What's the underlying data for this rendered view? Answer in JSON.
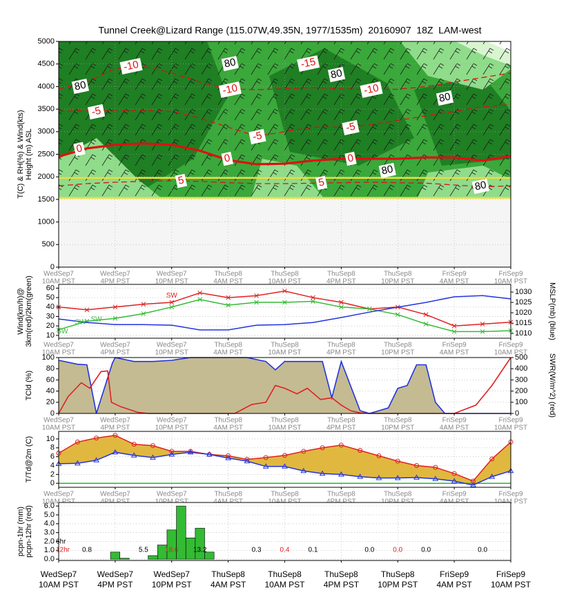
{
  "time_axis": {
    "xlim": [
      0,
      48
    ],
    "xticks": [
      0,
      6,
      12,
      18,
      24,
      30,
      36,
      42,
      48
    ],
    "days": [
      "WedSep7",
      "WedSep7",
      "WedSep7",
      "ThuSep8",
      "ThuSep8",
      "ThuSep8",
      "ThuSep8",
      "FriSep9",
      "FriSep9"
    ],
    "times": [
      "10AM PST",
      "4PM PST",
      "10PM PST",
      "4AM PST",
      "10AM PST",
      "4PM PST",
      "10PM PST",
      "4AM PST",
      "10AM PST"
    ]
  },
  "chart_data": [
    {
      "type": "contour",
      "title": "Tunnel Creek@Lizard Range (115.07W,49.35N, 1977/1535m)  20160907  18Z  LAM-west",
      "ylabel": [
        "T(C) & RH(%) & Wind(kts)",
        "Height (m) ASL"
      ],
      "ylim": [
        0,
        5000
      ],
      "yticks": [
        0,
        500,
        1000,
        1500,
        2000,
        2500,
        3000,
        3500,
        4000,
        4500,
        5000
      ],
      "grid": true,
      "elevations": [
        1535,
        1977
      ],
      "elevation_color": "#e8e040",
      "x": [
        0,
        3,
        6,
        9,
        12,
        15,
        18,
        21,
        24,
        27,
        30,
        33,
        36,
        39,
        42,
        45,
        48
      ],
      "contours": [
        {
          "level": 0,
          "color": "#dd1111",
          "dashed": false,
          "values": [
            2450,
            2630,
            2710,
            2740,
            2710,
            2580,
            2370,
            2280,
            2290,
            2360,
            2400,
            2400,
            2400,
            2430,
            2430,
            2360,
            2460
          ]
        },
        {
          "level": -5,
          "color": "#dd1111",
          "dashed": true,
          "values": [
            3450,
            3470,
            3480,
            3470,
            3450,
            3300,
            3100,
            2900,
            3000,
            3100,
            3100,
            3150,
            3250,
            3350,
            3450,
            3550,
            3600
          ]
        },
        {
          "level": -10,
          "color": "#dd1111",
          "dashed": true,
          "values": [
            3950,
            4100,
            4400,
            4450,
            4300,
            4100,
            3950,
            3930,
            3950,
            3980,
            3950,
            3930,
            3940,
            4000,
            4100,
            4200,
            4300
          ]
        },
        {
          "level": 5,
          "color": "#dd1111",
          "dashed": true,
          "values": [
            1800,
            1850,
            1880,
            1900,
            1910,
            1900,
            1870,
            1850,
            1850,
            1860,
            1870,
            1880,
            1870,
            1860,
            1820,
            1780,
            1800
          ]
        }
      ],
      "annotations": [
        {
          "text": "-10",
          "x": 7.7,
          "y": 4450,
          "color": "#dd1111"
        },
        {
          "text": "-10",
          "x": 18.2,
          "y": 3930,
          "color": "#dd1111"
        },
        {
          "text": "-10",
          "x": 33.2,
          "y": 3930,
          "color": "#dd1111"
        },
        {
          "text": "-15",
          "x": 26.5,
          "y": 4510,
          "color": "#dd1111"
        },
        {
          "text": "-5",
          "x": 4.0,
          "y": 3440,
          "color": "#dd1111"
        },
        {
          "text": "-5",
          "x": 21.1,
          "y": 2890,
          "color": "#dd1111"
        },
        {
          "text": "-5",
          "x": 31.0,
          "y": 3090,
          "color": "#dd1111"
        },
        {
          "text": "0",
          "x": 2.2,
          "y": 2615,
          "color": "#dd1111"
        },
        {
          "text": "0",
          "x": 17.9,
          "y": 2400,
          "color": "#dd1111"
        },
        {
          "text": "0",
          "x": 31.0,
          "y": 2400,
          "color": "#dd1111"
        },
        {
          "text": "5",
          "x": 13.0,
          "y": 1910,
          "color": "#dd1111"
        },
        {
          "text": "5",
          "x": 27.9,
          "y": 1865,
          "color": "#dd1111"
        },
        {
          "text": "80",
          "x": 18.2,
          "y": 4510,
          "color": "#000000"
        },
        {
          "text": "80",
          "x": 2.3,
          "y": 4006,
          "color": "#000000"
        },
        {
          "text": "80",
          "x": 29.5,
          "y": 4266,
          "color": "#000000"
        },
        {
          "text": "80",
          "x": 41.0,
          "y": 3746,
          "color": "#000000"
        },
        {
          "text": "80",
          "x": 34.9,
          "y": 2140,
          "color": "#000000"
        },
        {
          "text": "80",
          "x": 44.8,
          "y": 1790,
          "color": "#000000"
        }
      ]
    },
    {
      "type": "line",
      "ylabel": [
        "Wind(km/h)@",
        "3km(red)/2km(green)"
      ],
      "y2label": "MSLP(mb) (blue)",
      "ylim": [
        7,
        64
      ],
      "yticks": [
        10,
        20,
        30,
        40,
        50,
        60
      ],
      "y2lim": [
        1007.7,
        1033.7
      ],
      "y2ticks": [
        1010,
        1015,
        1020,
        1025,
        1030
      ],
      "grid": true,
      "x": [
        0,
        3,
        6,
        9,
        12,
        15,
        18,
        21,
        24,
        27,
        30,
        33,
        36,
        39,
        42,
        45,
        48
      ],
      "series": [
        {
          "color": "#e02020",
          "marker": "cross",
          "values": [
            40,
            37,
            40,
            43,
            45,
            55,
            50,
            52,
            57,
            50,
            45,
            38,
            40,
            32,
            20,
            22,
            24
          ]
        },
        {
          "color": "#33bb33",
          "marker": "cross",
          "values": [
            16,
            25,
            28,
            33,
            40,
            48,
            42,
            45,
            45,
            46,
            40,
            38,
            32,
            22,
            14,
            14,
            15
          ]
        },
        {
          "color": "#2233dd",
          "axis": "y2",
          "values": [
            1017,
            1015.3,
            1014.3,
            1014.3,
            1014,
            1011.7,
            1011.7,
            1014,
            1014.3,
            1015.3,
            1017.7,
            1020.3,
            1022.7,
            1025,
            1027.7,
            1028.3,
            1026.7
          ]
        }
      ],
      "annotations": [
        {
          "text": "SW",
          "x": 12,
          "y": 52,
          "color": "#e02020"
        },
        {
          "text": "SW",
          "x": 0.4,
          "y": 14,
          "color": "#33bb33"
        },
        {
          "text": "SW",
          "x": 2.3,
          "y": 24,
          "color": "#33bb33"
        },
        {
          "text": "SW",
          "x": 4,
          "y": 27,
          "color": "#33bb33"
        }
      ]
    },
    {
      "type": "area",
      "ylabel": [
        "TCld (%)"
      ],
      "y2label": "SWR(W/m^2) (red)",
      "ylim": [
        0,
        100
      ],
      "yticks": [
        0,
        20,
        40,
        60,
        80,
        100
      ],
      "y2lim": [
        0,
        500
      ],
      "y2ticks": [
        0,
        100,
        200,
        300,
        400,
        500
      ],
      "grid": true,
      "series": [
        {
          "color": "#2233dd",
          "fill": "#c4bb93",
          "x": [
            0,
            2,
            3,
            4,
            5.7,
            6,
            8,
            10,
            12,
            14,
            16,
            18,
            20,
            22,
            23,
            24,
            26,
            28,
            29,
            30,
            32,
            33,
            34,
            35,
            36,
            37,
            38,
            39,
            40,
            41,
            42,
            44,
            46,
            48
          ],
          "values": [
            95,
            88,
            87,
            0,
            90,
            100,
            93,
            93,
            95,
            100,
            100,
            100,
            100,
            93,
            78,
            93,
            93,
            93,
            28,
            93,
            5,
            0,
            5,
            10,
            45,
            50,
            87,
            87,
            20,
            0,
            0,
            0,
            0,
            0
          ]
        },
        {
          "color": "#e02020",
          "axis": "y2",
          "x": [
            0,
            1,
            2.4,
            3.3,
            4.5,
            5.2,
            5.6,
            6.6,
            8.4,
            9.5,
            18.7,
            20.5,
            22,
            23,
            24,
            25.3,
            26.4,
            27.8,
            29,
            30,
            31,
            32,
            33,
            42,
            44.3,
            46,
            48
          ],
          "values": [
            0,
            150,
            275,
            225,
            375,
            380,
            100,
            60,
            10,
            0,
            0,
            80,
            100,
            250,
            225,
            175,
            225,
            125,
            140,
            75,
            25,
            5,
            0,
            0,
            75,
            250,
            500
          ]
        }
      ]
    },
    {
      "type": "line",
      "ylabel": [
        "T/Td@2m (C)"
      ],
      "ylim": [
        -0.9,
        11.7
      ],
      "yticks": [
        0,
        2,
        4,
        6,
        8,
        10
      ],
      "grid": true,
      "fill_between": "#e0b840",
      "zero_line_color": "#22bb22",
      "x": [
        0,
        2,
        4,
        6,
        8,
        10,
        12,
        14,
        16,
        18,
        20,
        22,
        24,
        26,
        28,
        30,
        32,
        34,
        36,
        38,
        40,
        42,
        44,
        46,
        48
      ],
      "series": [
        {
          "color": "#e02020",
          "marker": "circle",
          "values": [
            6.8,
            9.3,
            10.2,
            10.8,
            8.8,
            8.5,
            7.2,
            7.2,
            6.5,
            6.2,
            5.4,
            5.8,
            6.3,
            7.2,
            8.0,
            8.6,
            7.4,
            6.2,
            5.0,
            4.0,
            3.6,
            2.2,
            0.5,
            5.5,
            9.3
          ]
        },
        {
          "color": "#2233dd",
          "marker": "triangle",
          "values": [
            4.4,
            4.5,
            5.2,
            7.0,
            6.3,
            5.8,
            6.5,
            7.0,
            6.5,
            5.7,
            5.0,
            3.8,
            3.8,
            2.8,
            2.2,
            2.0,
            1.5,
            1.2,
            1.2,
            1.3,
            1.0,
            0.5,
            -0.4,
            1.5,
            2.8
          ]
        }
      ]
    },
    {
      "type": "bar",
      "ylabel": [
        "pcpn-1hr (mm)",
        "pcpn-12hr (red)"
      ],
      "ylim": [
        -0.15,
        6.4
      ],
      "yticks": [
        {
          "value": 0,
          "label": "0.0"
        },
        {
          "value": 1,
          "label": "1.0"
        },
        {
          "value": 2,
          "label": "2.0"
        },
        {
          "value": 3,
          "label": "3.0"
        },
        {
          "value": 4,
          "label": "4.0"
        },
        {
          "value": 5,
          "label": "5.0"
        },
        {
          "value": 6,
          "label": "6.0"
        }
      ],
      "grid": true,
      "color": "#33bb33",
      "x": [
        6,
        7,
        10,
        11,
        12,
        13,
        14,
        15,
        16
      ],
      "values": [
        0.8,
        0.1,
        0.4,
        1.6,
        3.3,
        6.0,
        2.4,
        3.5,
        0.8
      ],
      "accum_6hr": {
        "label": "6hr",
        "color": "#000000",
        "x": [
          3,
          9,
          15,
          21,
          27,
          33,
          39,
          45
        ],
        "values": [
          0.8,
          5.5,
          13.2,
          0.3,
          0.1,
          0,
          0,
          0
        ],
        "value_labels": [
          "0.8",
          "5.5",
          "13.2",
          "0.3",
          "0.1",
          "0.0",
          "0.0",
          "0.0"
        ]
      },
      "accum_12hr": {
        "label": "12hr",
        "color": "#e02020",
        "x": [
          12,
          24,
          36
        ],
        "values": [
          18.6,
          0.4,
          0
        ],
        "value_labels": [
          "18.6",
          "0.4",
          "0.0"
        ]
      }
    }
  ]
}
